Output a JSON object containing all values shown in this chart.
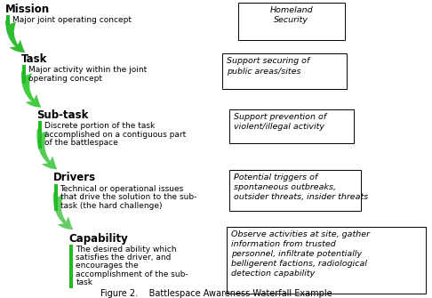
{
  "background_color": "#ffffff",
  "title": "Figure 2.    Battlespace Awareness Waterfall Example",
  "title_fontsize": 7,
  "levels": [
    {
      "label": "Mission",
      "desc": "Major joint operating concept",
      "indent": 0,
      "arrow_color_top": "#33bb33",
      "arrow_color_bot": "#aaddaa"
    },
    {
      "label": "Task",
      "desc": "Major activity within the joint\noperating concept",
      "indent": 1,
      "arrow_color_top": "#33bb33",
      "arrow_color_bot": "#aaddaa"
    },
    {
      "label": "Sub-task",
      "desc": "Discrete portion of the task\naccomplished on a contiguous part\nof the battlespace",
      "indent": 2,
      "arrow_color_top": "#55cc55",
      "arrow_color_bot": "#bbeebb"
    },
    {
      "label": "Drivers",
      "desc": "Technical or operational issues\nthat drive the solution to the sub-\ntask (the hard challenge)",
      "indent": 3,
      "arrow_color_top": "#66cc66",
      "arrow_color_bot": "#cceecc"
    },
    {
      "label": "Capability",
      "desc": "The desired ability which\nsatisfies the driver, and\nencourages the\naccomplishment of the sub-\ntask",
      "indent": 4,
      "arrow_color_top": "#77dd77",
      "arrow_color_bot": "#ddf0dd"
    }
  ],
  "boxes": [
    {
      "text": "Homeland\nSecurity",
      "align": "center"
    },
    {
      "text": "Support securing of\npublic areas/sites",
      "align": "left"
    },
    {
      "text": "Support prevention of\nviolent/illegal activity",
      "align": "left"
    },
    {
      "text": "Potential triggers of\nspontaneous outbreaks,\noutsider threats, insider threats",
      "align": "left"
    },
    {
      "text": "Observe activities at site, gather\ninformation from trusted\npersonnel, infiltrate potentially\nbelligerent factions, radiological\ndetection capability",
      "align": "left"
    }
  ]
}
